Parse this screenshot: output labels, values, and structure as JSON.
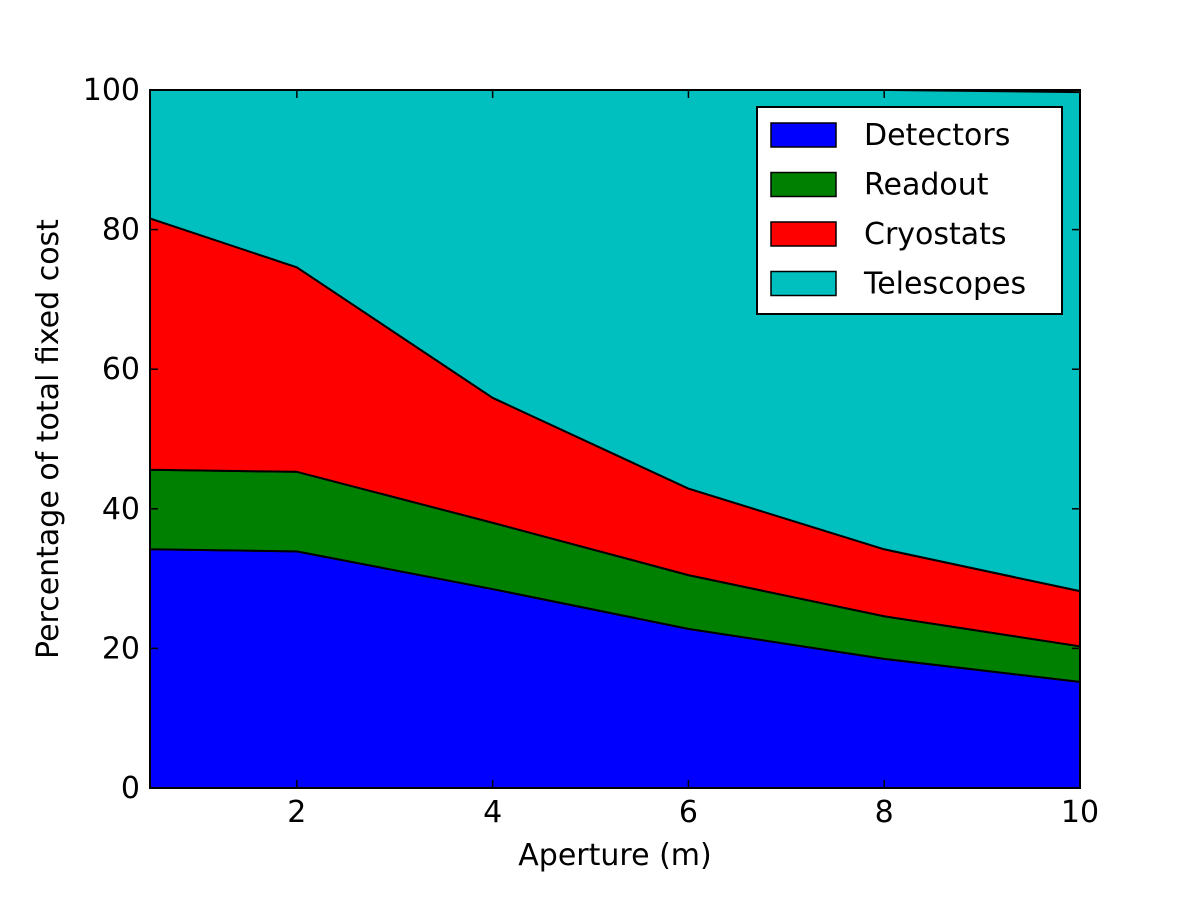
{
  "chart_data": {
    "type": "area",
    "stacked": true,
    "title": "",
    "xlabel": "Aperture (m)",
    "ylabel": "Percentage of total fixed cost",
    "xlim": [
      0.5,
      10
    ],
    "ylim": [
      0,
      100
    ],
    "x": [
      0.5,
      2,
      4,
      6,
      8,
      10
    ],
    "xticks": [
      2,
      4,
      6,
      8,
      10
    ],
    "yticks": [
      0,
      20,
      40,
      60,
      80,
      100
    ],
    "grid": false,
    "legend_position": "top-right",
    "series": [
      {
        "name": "Detectors",
        "color": "#0000ff",
        "values": [
          34.2,
          33.9,
          28.5,
          22.8,
          18.5,
          15.2
        ]
      },
      {
        "name": "Readout",
        "color": "#008000",
        "values": [
          11.4,
          11.4,
          9.5,
          7.7,
          6.1,
          5.1
        ]
      },
      {
        "name": "Cryostats",
        "color": "#ff0000",
        "values": [
          36.0,
          29.3,
          17.9,
          12.4,
          9.6,
          7.9
        ]
      },
      {
        "name": "Telescopes",
        "color": "#00bfbf",
        "values": [
          18.4,
          25.4,
          44.1,
          57.1,
          65.8,
          71.5
        ]
      }
    ]
  }
}
